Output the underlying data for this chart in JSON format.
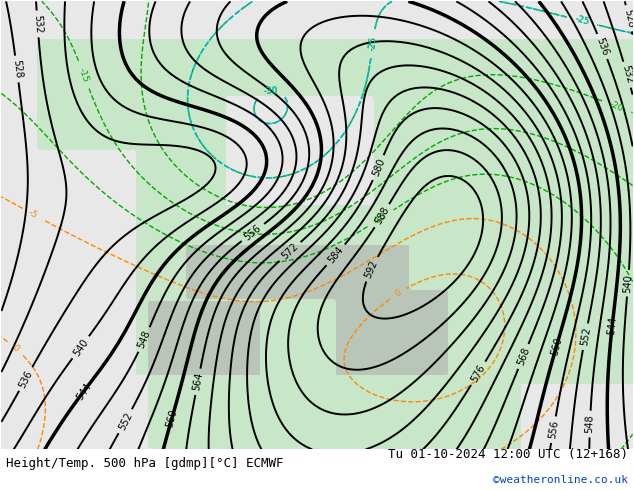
{
  "title_left": "Height/Temp. 500 hPa [gdmp][°C] ECMWF",
  "title_right": "Tu 01-10-2024 12:00 UTC (12+168)",
  "watermark": "©weatheronline.co.uk",
  "bg_land_light": "#c8e6c8",
  "bg_land_lighter": "#d8f0d8",
  "bg_sea": "#e8e8e8",
  "bg_gray": "#c8c8c8",
  "contour_z500_color": "#000000",
  "contour_temp_warm_color": "#ff8800",
  "contour_temp_cold_color": "#00aa00",
  "contour_temp_cyan_color": "#00bbcc",
  "contour_temp_red_color": "#dd0000",
  "label_fontsize": 8,
  "title_fontsize": 9
}
